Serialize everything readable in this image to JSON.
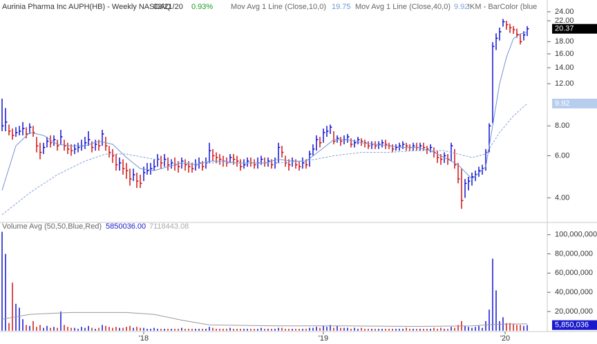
{
  "chart_data": [
    {
      "type": "ohlc",
      "title": "Aurinia Pharma Inc  AUPH(HB) - Weekly  NASDAQ",
      "date": "02/21/20",
      "change": "0.93%",
      "study_label": "!KM - BarColor (blue",
      "up_color": "#0000cc",
      "down_color": "#cc0000",
      "log_scale": true,
      "ylim": [
        3.2,
        26
      ],
      "yticks": [
        {
          "value": 4,
          "label": "4.00"
        },
        {
          "value": 6,
          "label": "6.00"
        },
        {
          "value": 8,
          "label": "8.00"
        },
        {
          "value": 12,
          "label": "12.00"
        },
        {
          "value": 14,
          "label": "14.00"
        },
        {
          "value": 16,
          "label": "16.00"
        },
        {
          "value": 18,
          "label": "18.00"
        },
        {
          "value": 22,
          "label": "22.00"
        },
        {
          "value": 24,
          "label": "24.00"
        }
      ],
      "high": [
        10.4,
        9.5,
        8.1,
        7.8,
        7.9,
        8.0,
        8.3,
        7.9,
        8.2,
        8.0,
        7.2,
        6.8,
        6.8,
        7.2,
        7.3,
        7.3,
        7.0,
        7.7,
        7.0,
        6.8,
        6.7,
        6.7,
        6.8,
        7.0,
        7.2,
        7.6,
        6.9,
        7.0,
        7.0,
        7.7,
        7.2,
        6.6,
        6.4,
        6.1,
        5.9,
        5.8,
        5.6,
        5.3,
        5.3,
        5.1,
        5.0,
        5.4,
        5.6,
        5.6,
        5.8,
        6.1,
        6.0,
        6.1,
        5.9,
        5.8,
        5.9,
        5.7,
        5.9,
        5.8,
        5.7,
        5.6,
        5.8,
        5.9,
        5.7,
        5.9,
        6.8,
        6.4,
        6.2,
        6.1,
        6.0,
        5.9,
        6.1,
        6.1,
        6.0,
        5.8,
        5.8,
        5.9,
        5.9,
        5.8,
        5.9,
        6.0,
        5.9,
        5.9,
        5.8,
        5.9,
        6.8,
        6.6,
        6.0,
        5.8,
        5.9,
        5.8,
        5.7,
        5.9,
        5.8,
        6.3,
        6.7,
        7.3,
        7.2,
        7.8,
        8.0,
        8.1,
        7.6,
        7.3,
        7.2,
        7.3,
        7.4,
        7.1,
        7.0,
        7.2,
        7.1,
        7.0,
        6.9,
        6.9,
        6.9,
        6.9,
        7.0,
        7.0,
        6.8,
        6.7,
        6.7,
        6.8,
        6.9,
        6.8,
        6.7,
        6.8,
        6.8,
        6.8,
        6.8,
        6.6,
        6.7,
        6.5,
        6.3,
        6.1,
        6.2,
        6.1,
        6.8,
        6.4,
        5.6,
        5.3,
        4.8,
        4.9,
        5.1,
        5.2,
        5.4,
        5.5,
        6.4,
        8.2,
        17.9,
        19.5,
        20.6,
        22.4,
        22.0,
        21.4,
        20.9,
        20.4,
        19.4,
        19.9,
        20.9
      ],
      "low": [
        7.6,
        7.6,
        7.3,
        7.0,
        7.2,
        7.3,
        7.3,
        7.1,
        7.4,
        7.2,
        6.2,
        5.8,
        6.1,
        6.5,
        6.5,
        6.6,
        6.3,
        6.7,
        6.3,
        6.1,
        6.0,
        6.1,
        6.2,
        6.3,
        6.4,
        6.6,
        6.2,
        6.3,
        6.3,
        6.6,
        6.3,
        5.9,
        5.6,
        5.2,
        5.2,
        5.0,
        4.8,
        4.5,
        4.7,
        4.4,
        4.4,
        4.7,
        5.0,
        5.0,
        5.2,
        5.4,
        5.3,
        5.4,
        5.2,
        5.3,
        5.2,
        5.1,
        5.3,
        5.2,
        5.1,
        5.1,
        5.2,
        5.3,
        5.2,
        5.3,
        5.6,
        5.7,
        5.6,
        5.5,
        5.4,
        5.4,
        5.6,
        5.5,
        5.4,
        5.2,
        5.3,
        5.4,
        5.4,
        5.3,
        5.3,
        5.5,
        5.4,
        5.4,
        5.3,
        5.3,
        5.6,
        5.9,
        5.4,
        5.2,
        5.4,
        5.3,
        5.2,
        5.3,
        5.3,
        5.4,
        6.0,
        6.3,
        6.5,
        6.8,
        7.2,
        7.4,
        6.7,
        6.8,
        6.6,
        6.7,
        6.8,
        6.5,
        6.5,
        6.7,
        6.6,
        6.5,
        6.4,
        6.4,
        6.4,
        6.4,
        6.5,
        6.4,
        6.4,
        6.2,
        6.3,
        6.3,
        6.4,
        6.3,
        6.3,
        6.3,
        6.3,
        6.3,
        6.3,
        6.1,
        6.2,
        5.9,
        5.6,
        5.5,
        5.6,
        5.5,
        5.7,
        5.3,
        4.6,
        3.6,
        4.0,
        4.3,
        4.5,
        4.7,
        4.9,
        5.0,
        5.2,
        6.2,
        8.2,
        16.6,
        18.2,
        20.8,
        20.2,
        19.6,
        19.4,
        18.7,
        17.5,
        18.2,
        19.0
      ],
      "close": [
        8.0,
        8.3,
        7.6,
        7.3,
        7.5,
        7.6,
        7.8,
        7.4,
        7.9,
        7.5,
        6.6,
        6.2,
        6.5,
        6.9,
        6.8,
        7.0,
        6.6,
        7.2,
        6.6,
        6.4,
        6.3,
        6.4,
        6.5,
        6.6,
        6.8,
        7.0,
        6.5,
        6.7,
        6.6,
        7.4,
        6.6,
        6.2,
        6.0,
        5.5,
        5.6,
        5.3,
        5.2,
        4.8,
        5.0,
        4.7,
        4.6,
        5.1,
        5.2,
        5.3,
        5.4,
        5.8,
        5.6,
        5.8,
        5.5,
        5.6,
        5.5,
        5.4,
        5.7,
        5.5,
        5.4,
        5.3,
        5.5,
        5.6,
        5.4,
        5.6,
        6.3,
        6.0,
        5.9,
        5.8,
        5.7,
        5.6,
        5.9,
        5.8,
        5.7,
        5.4,
        5.5,
        5.7,
        5.6,
        5.5,
        5.6,
        5.8,
        5.6,
        5.7,
        5.5,
        5.6,
        6.5,
        6.2,
        5.6,
        5.5,
        5.7,
        5.5,
        5.4,
        5.6,
        5.5,
        6.1,
        6.4,
        7.0,
        6.8,
        7.5,
        7.6,
        7.9,
        6.9,
        7.1,
        6.9,
        7.0,
        7.2,
        6.7,
        6.8,
        7.0,
        6.9,
        6.8,
        6.6,
        6.7,
        6.6,
        6.7,
        6.8,
        6.7,
        6.6,
        6.4,
        6.5,
        6.6,
        6.7,
        6.6,
        6.5,
        6.6,
        6.5,
        6.6,
        6.5,
        6.4,
        6.5,
        6.2,
        5.9,
        5.8,
        6.0,
        5.8,
        6.6,
        5.5,
        4.8,
        3.9,
        4.6,
        4.7,
        4.9,
        5.0,
        5.2,
        5.3,
        6.2,
        8.0,
        17.2,
        18.6,
        19.8,
        21.8,
        21.2,
        20.6,
        20.2,
        19.3,
        18.0,
        19.2,
        20.37
      ],
      "series": [
        {
          "name": "Mov Avg 1 Line (Close,10,0)",
          "color": "#6f93d6",
          "dash": false,
          "x": [
            0,
            4,
            8,
            12,
            16,
            20,
            24,
            28,
            32,
            36,
            40,
            44,
            48,
            52,
            56,
            60,
            64,
            68,
            72,
            76,
            80,
            84,
            88,
            92,
            96,
            100,
            104,
            108,
            112,
            116,
            120,
            124,
            128,
            132,
            136,
            140,
            142,
            144,
            146,
            148,
            150,
            152
          ],
          "values": [
            4.3,
            6.6,
            7.5,
            7.3,
            6.7,
            6.6,
            6.6,
            6.9,
            6.7,
            5.9,
            5.3,
            5.2,
            5.4,
            5.6,
            5.5,
            5.7,
            5.7,
            5.6,
            5.6,
            5.6,
            5.8,
            5.7,
            5.7,
            6.3,
            7.0,
            7.0,
            6.8,
            6.7,
            6.6,
            6.5,
            6.5,
            6.3,
            5.9,
            5.5,
            4.8,
            5.4,
            8.0,
            12,
            15.5,
            18.5,
            19.4,
            19.75
          ]
        },
        {
          "name": "Mov Avg 1 Line (Close,40,0)",
          "color": "#7f9fd8",
          "dash": true,
          "x": [
            0,
            8,
            16,
            24,
            30,
            36,
            44,
            52,
            60,
            70,
            80,
            88,
            96,
            104,
            112,
            120,
            128,
            136,
            140,
            144,
            148,
            152
          ],
          "values": [
            3.4,
            4.2,
            5.0,
            5.7,
            6.1,
            6.1,
            5.8,
            5.6,
            5.6,
            5.6,
            5.6,
            5.7,
            6.0,
            6.2,
            6.2,
            6.3,
            6.3,
            5.9,
            6.1,
            7.5,
            8.8,
            9.92
          ]
        }
      ]
    },
    {
      "type": "bar",
      "title": "Volume Avg (50,50,Blue,Red)",
      "readout": {
        "value": "5850036.00",
        "average": "7118443.08",
        "axis_label": "5,850,036"
      },
      "ylim": [
        0,
        107000000
      ],
      "yticks": [
        {
          "value": 20000000,
          "label": "20,000,000"
        },
        {
          "value": 40000000,
          "label": "40,000,000"
        },
        {
          "value": 60000000,
          "label": "60,000,000"
        },
        {
          "value": 80000000,
          "label": "80,000,000"
        },
        {
          "value": 100000000,
          "label": "100,000,000"
        }
      ],
      "xticks": [
        {
          "value": 41,
          "label": "'18"
        },
        {
          "value": 93,
          "label": "'19"
        },
        {
          "value": 145.6,
          "label": "'20"
        }
      ],
      "values": [
        103000000,
        80000000,
        8000000,
        50000000,
        28000000,
        24000000,
        12000000,
        6000000,
        5000000,
        10000000,
        4000000,
        6000000,
        3000000,
        5000000,
        3000000,
        4000000,
        3000000,
        20000000,
        6000000,
        4000000,
        3000000,
        3000000,
        2000000,
        4000000,
        3000000,
        5000000,
        3000000,
        2000000,
        3000000,
        6000000,
        5000000,
        4000000,
        3000000,
        4000000,
        3000000,
        3000000,
        4000000,
        5000000,
        3000000,
        4000000,
        3000000,
        3000000,
        2000000,
        2000000,
        3000000,
        2000000,
        2000000,
        2000000,
        2000000,
        2000000,
        2000000,
        2000000,
        3000000,
        2000000,
        2000000,
        2000000,
        2000000,
        2000000,
        2000000,
        2000000,
        4000000,
        3000000,
        2000000,
        2000000,
        2000000,
        2000000,
        3000000,
        2000000,
        2000000,
        2000000,
        2000000,
        2000000,
        2000000,
        2000000,
        2000000,
        3000000,
        2000000,
        2000000,
        2000000,
        2000000,
        3000000,
        3000000,
        2000000,
        2000000,
        2000000,
        2000000,
        2000000,
        2000000,
        2000000,
        3000000,
        3000000,
        4000000,
        3000000,
        5000000,
        4000000,
        6000000,
        3000000,
        5000000,
        3000000,
        3000000,
        3000000,
        2000000,
        3000000,
        2000000,
        3000000,
        2000000,
        2000000,
        2000000,
        2000000,
        2000000,
        2000000,
        2000000,
        2000000,
        2000000,
        2000000,
        2000000,
        2000000,
        3000000,
        2000000,
        2000000,
        2000000,
        2000000,
        2000000,
        2000000,
        2000000,
        3000000,
        2000000,
        3000000,
        2000000,
        2000000,
        4000000,
        3000000,
        6000000,
        10000000,
        5000000,
        4000000,
        3000000,
        4000000,
        5000000,
        3000000,
        10000000,
        22000000,
        75000000,
        42000000,
        10000000,
        14000000,
        8000000,
        8000000,
        7000000,
        6000000,
        6000000,
        5000000,
        5850036
      ],
      "series": [
        {
          "name": "Volume Avg",
          "color": "#999999",
          "x": [
            0,
            8,
            20,
            36,
            44,
            52,
            60,
            80,
            100,
            120,
            136,
            142,
            148,
            152
          ],
          "values": [
            12000000,
            17000000,
            19000000,
            19000000,
            17000000,
            11000000,
            6000000,
            5000000,
            5000000,
            4500000,
            5000000,
            6500000,
            7000000,
            7118443.08
          ]
        }
      ]
    }
  ]
}
